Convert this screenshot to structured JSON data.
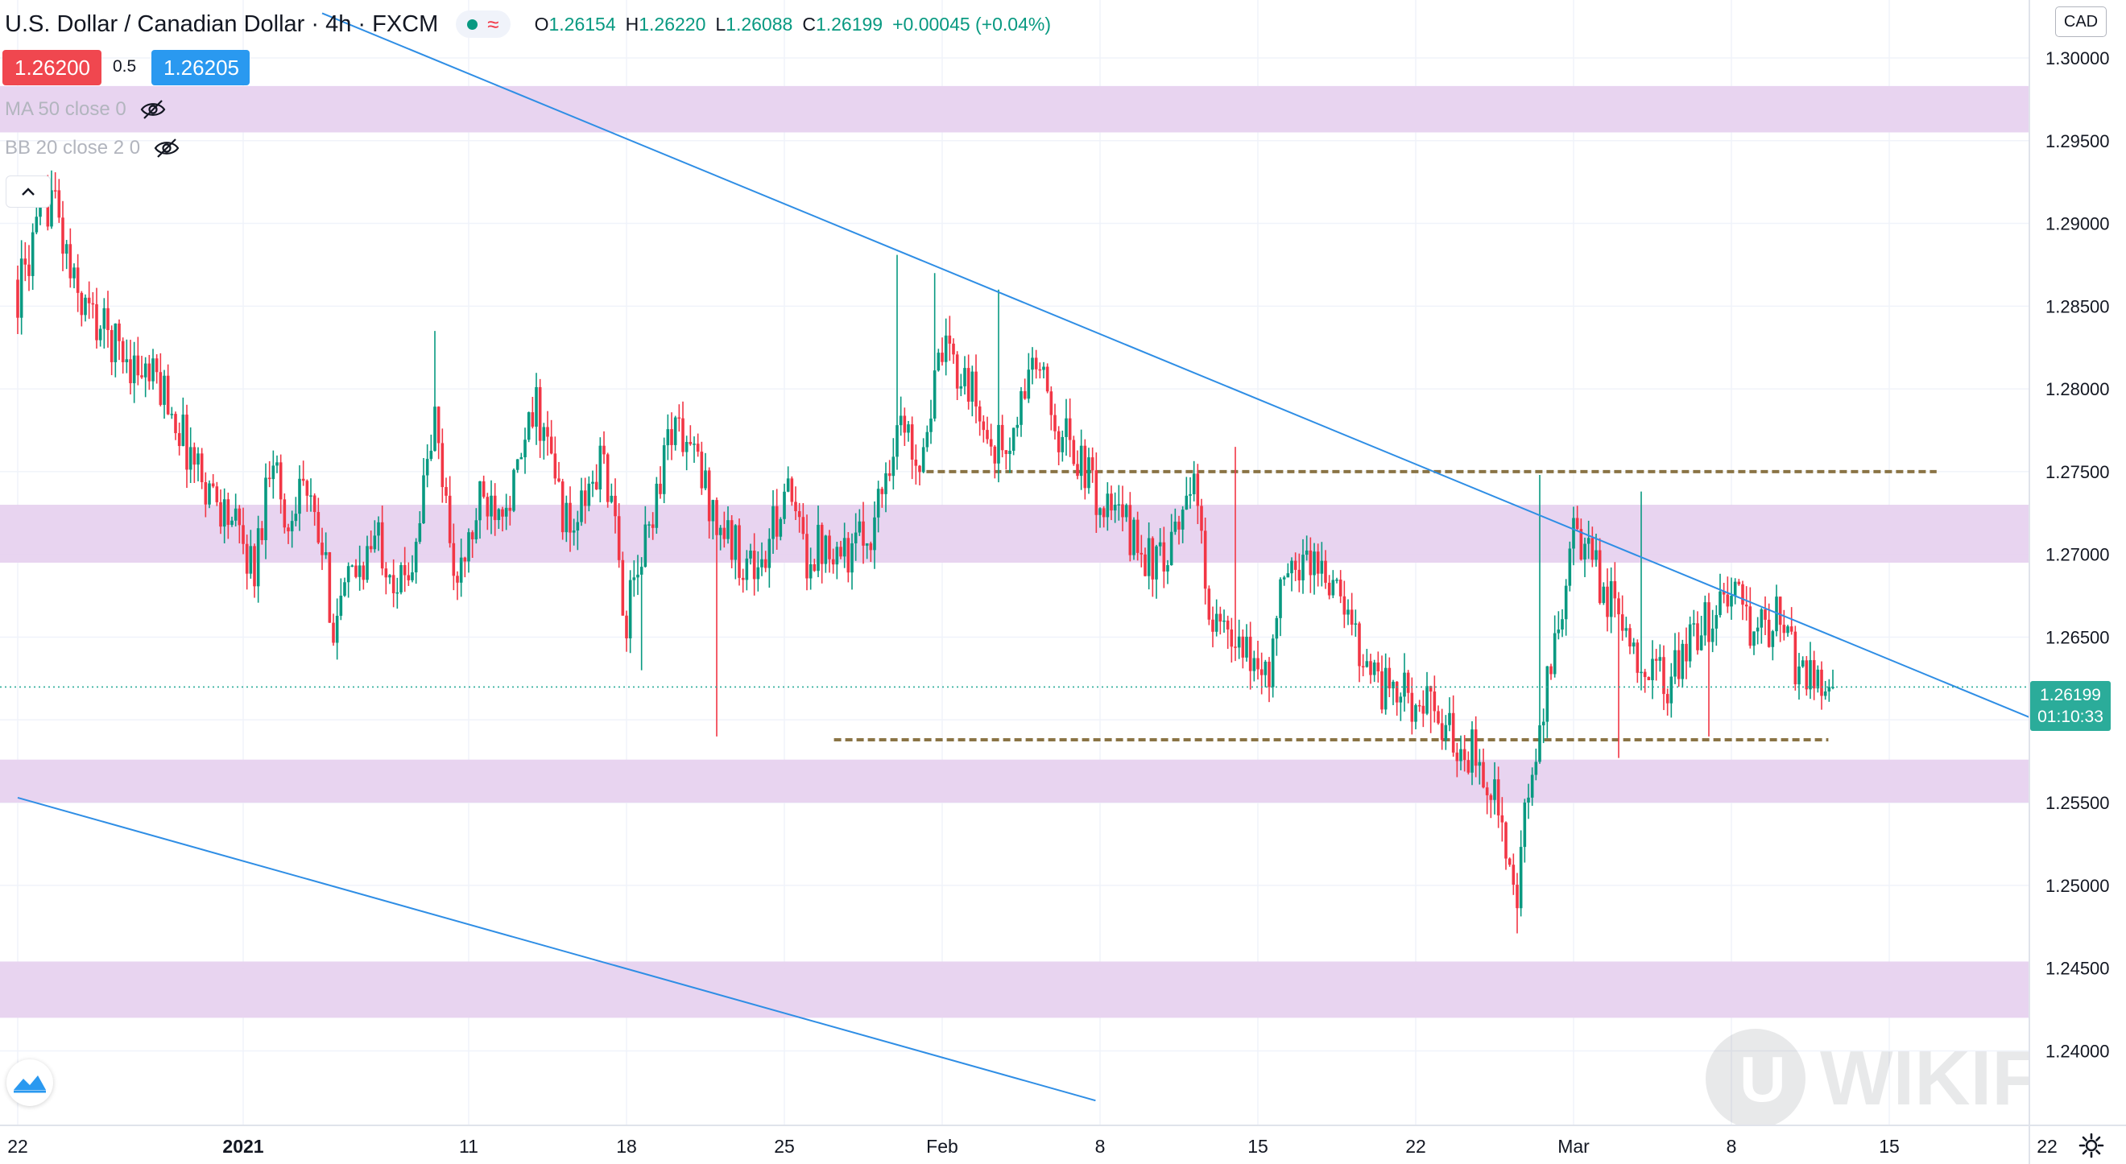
{
  "header": {
    "title": "U.S. Dollar / Canadian Dollar · 4h · FXCM",
    "ohlc": {
      "o_label": "O",
      "o_value": "1.26154",
      "h_label": "H",
      "h_value": "1.26220",
      "l_label": "L",
      "l_value": "1.26088",
      "c_label": "C",
      "c_value": "1.26199",
      "change": "+0.00045 (+0.04%)"
    }
  },
  "quote": {
    "bid": "1.26200",
    "spread": "0.5",
    "ask": "1.26205"
  },
  "indicators": [
    {
      "label": "MA 50 close 0",
      "icon": "eye-hidden-icon"
    },
    {
      "label": "BB 20 close 2 0",
      "icon": "eye-hidden-icon"
    }
  ],
  "currency_label": "CAD",
  "current_price": {
    "value": "1.26199",
    "countdown": "01:10:33"
  },
  "watermark_text": "WIKIFX",
  "colors": {
    "up": "#089981",
    "down": "#f23645",
    "zone": "#e6cfee",
    "trend": "#2f8ee5",
    "level": "#8a7445",
    "bid_box": "#f0474f",
    "ask_box": "#2a99f0",
    "price_tag": "#2bac9a"
  },
  "chart_data": {
    "type": "candlestick",
    "title": "U.S. Dollar / Canadian Dollar · 4h · FXCM",
    "y_axis": {
      "ylim": [
        1.2355,
        1.3035
      ],
      "ticks": [
        "1.30000",
        "1.29500",
        "1.29000",
        "1.28500",
        "1.28000",
        "1.27500",
        "1.27000",
        "1.26500",
        "1.26000",
        "1.25500",
        "1.25000",
        "1.24500",
        "1.24000"
      ]
    },
    "x_axis": {
      "start_date": "2020-12-22",
      "labels": [
        {
          "text": "22",
          "day": 0,
          "bold": false
        },
        {
          "text": "2021",
          "day": 10,
          "bold": true
        },
        {
          "text": "11",
          "day": 20,
          "bold": false
        },
        {
          "text": "18",
          "day": 27,
          "bold": false
        },
        {
          "text": "25",
          "day": 34,
          "bold": false
        },
        {
          "text": "Feb",
          "day": 41,
          "bold": false
        },
        {
          "text": "8",
          "day": 48,
          "bold": false
        },
        {
          "text": "15",
          "day": 55,
          "bold": false
        },
        {
          "text": "22",
          "day": 62,
          "bold": false
        },
        {
          "text": "Mar",
          "day": 69,
          "bold": false
        },
        {
          "text": "8",
          "day": 76,
          "bold": false
        },
        {
          "text": "15",
          "day": 83,
          "bold": false
        },
        {
          "text": "22",
          "day": 90,
          "bold": false
        }
      ]
    },
    "zones": [
      [
        1.2955,
        1.2983
      ],
      [
        1.2695,
        1.273
      ],
      [
        1.255,
        1.2576
      ],
      [
        1.242,
        1.2454
      ]
    ],
    "trendlines": [
      {
        "points": [
          [
            13.5,
            1.3027
          ],
          [
            89.5,
            1.26
          ]
        ]
      },
      {
        "points": [
          [
            0,
            1.2553
          ],
          [
            47.8,
            1.237
          ]
        ]
      }
    ],
    "levels": [
      {
        "price": 1.275,
        "from_day": 40.3,
        "to_day": 85.1
      },
      {
        "price": 1.2588,
        "from_day": 36.2,
        "to_day": 80.3
      }
    ],
    "last_price": 1.26199,
    "anchors": [
      [
        0,
        1.2858
      ],
      [
        1.5,
        1.292
      ],
      [
        2.5,
        1.286
      ],
      [
        3.5,
        1.284
      ],
      [
        5.5,
        1.281
      ],
      [
        6.5,
        1.28
      ],
      [
        7.5,
        1.2765
      ],
      [
        8.5,
        1.274
      ],
      [
        9.5,
        1.272
      ],
      [
        10.5,
        1.269
      ],
      [
        11.3,
        1.277
      ],
      [
        11.9,
        1.271
      ],
      [
        12.5,
        1.275
      ],
      [
        13.5,
        1.27
      ],
      [
        14,
        1.266
      ],
      [
        15,
        1.269
      ],
      [
        16,
        1.271
      ],
      [
        17,
        1.268
      ],
      [
        17.5,
        1.27
      ],
      [
        18.5,
        1.278
      ],
      [
        19.5,
        1.268
      ],
      [
        20.5,
        1.273
      ],
      [
        22,
        1.274
      ],
      [
        23,
        1.279
      ],
      [
        24.5,
        1.271
      ],
      [
        26,
        1.276
      ],
      [
        27,
        1.266
      ],
      [
        27.7,
        1.27
      ],
      [
        29,
        1.278
      ],
      [
        30,
        1.276
      ],
      [
        31,
        1.272
      ],
      [
        32,
        1.27
      ],
      [
        33,
        1.269
      ],
      [
        34,
        1.274
      ],
      [
        35,
        1.27
      ],
      [
        36,
        1.271
      ],
      [
        37,
        1.27
      ],
      [
        38,
        1.272
      ],
      [
        39,
        1.278
      ],
      [
        40,
        1.276
      ],
      [
        41,
        1.282
      ],
      [
        42,
        1.281
      ],
      [
        43,
        1.277
      ],
      [
        44,
        1.276
      ],
      [
        45,
        1.282
      ],
      [
        46,
        1.278
      ],
      [
        47,
        1.276
      ],
      [
        48,
        1.273
      ],
      [
        49,
        1.272
      ],
      [
        50,
        1.27
      ],
      [
        51,
        1.269
      ],
      [
        52,
        1.275
      ],
      [
        53,
        1.266
      ],
      [
        54,
        1.264
      ],
      [
        55.5,
        1.263
      ],
      [
        56,
        1.2675
      ],
      [
        57,
        1.27
      ],
      [
        58,
        1.269
      ],
      [
        59,
        1.266
      ],
      [
        60.5,
        1.262
      ],
      [
        61.5,
        1.2615
      ],
      [
        62.5,
        1.2607
      ],
      [
        63.5,
        1.259
      ],
      [
        64.5,
        1.258
      ],
      [
        65.5,
        1.256
      ],
      [
        66.4,
        1.248
      ],
      [
        66.9,
        1.2545
      ],
      [
        67.5,
        1.259
      ],
      [
        68.2,
        1.265
      ],
      [
        69.0,
        1.271
      ],
      [
        70,
        1.269
      ],
      [
        71,
        1.266
      ],
      [
        72,
        1.264
      ],
      [
        73,
        1.262
      ],
      [
        74,
        1.264
      ],
      [
        75,
        1.266
      ],
      [
        76,
        1.268
      ],
      [
        77,
        1.265
      ],
      [
        78,
        1.266
      ],
      [
        79,
        1.263
      ],
      [
        80,
        1.2625
      ],
      [
        80.5,
        1.262
      ]
    ],
    "extremes": [
      [
        1.5,
        "H",
        1.2932
      ],
      [
        18.5,
        "H",
        1.2835
      ],
      [
        27.7,
        "L",
        1.263
      ],
      [
        31,
        "L",
        1.259
      ],
      [
        39,
        "H",
        1.2881
      ],
      [
        40.7,
        "H",
        1.287
      ],
      [
        43.5,
        "H",
        1.286
      ],
      [
        49,
        "L",
        1.274
      ],
      [
        54,
        "H",
        1.2765
      ],
      [
        62.7,
        "L",
        1.2592
      ],
      [
        66.5,
        "L",
        1.2471
      ],
      [
        67.5,
        "H",
        1.2748
      ],
      [
        71,
        "L",
        1.2577
      ],
      [
        72,
        "H",
        1.2738
      ],
      [
        75,
        "L",
        1.259
      ]
    ]
  }
}
